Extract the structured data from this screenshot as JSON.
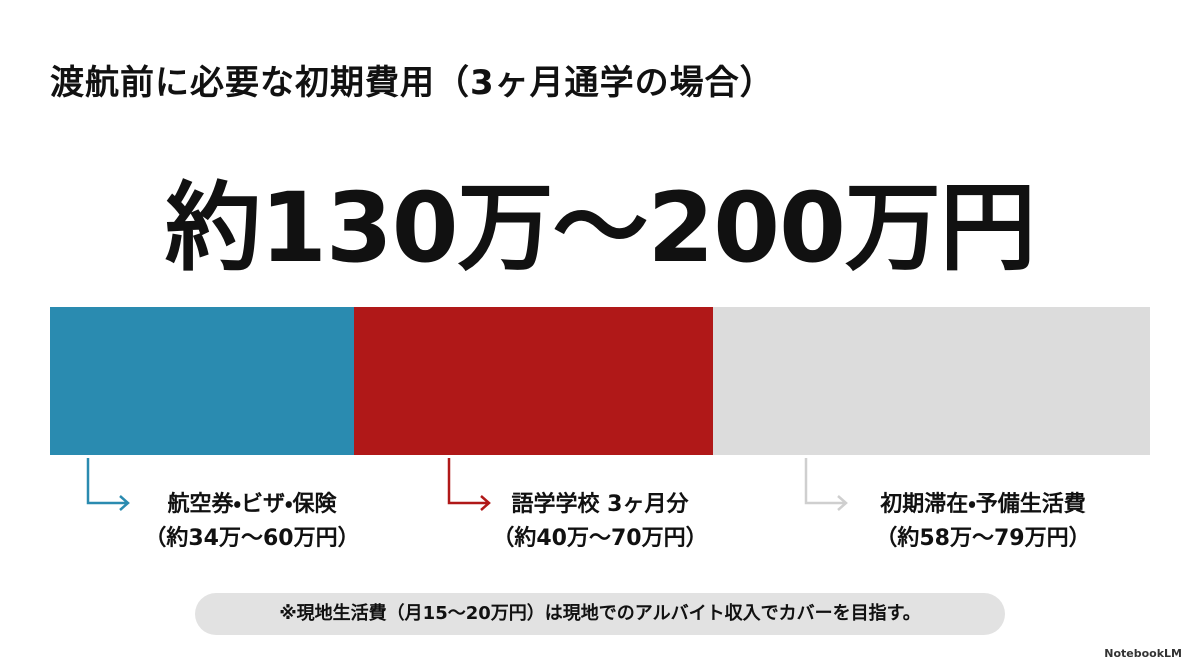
{
  "title": "渡航前に必要な初期費用（3ヶ月通学の場合）",
  "headline": "約130万～200万円",
  "breakdown": [
    {
      "label": "航空券・ビザ・保険",
      "range": "（約34万～60万円）"
    },
    {
      "label": "語学学校 3ヶ月分",
      "range": "（約40万～70万円）"
    },
    {
      "label": "初期滞在・予備生活費",
      "range": "（約58万～79万円）"
    }
  ],
  "note": "※現地生活費（月15～20万円）は現地でのアルバイト収入でカバーを目指す。",
  "brand": "NotebookLM"
}
